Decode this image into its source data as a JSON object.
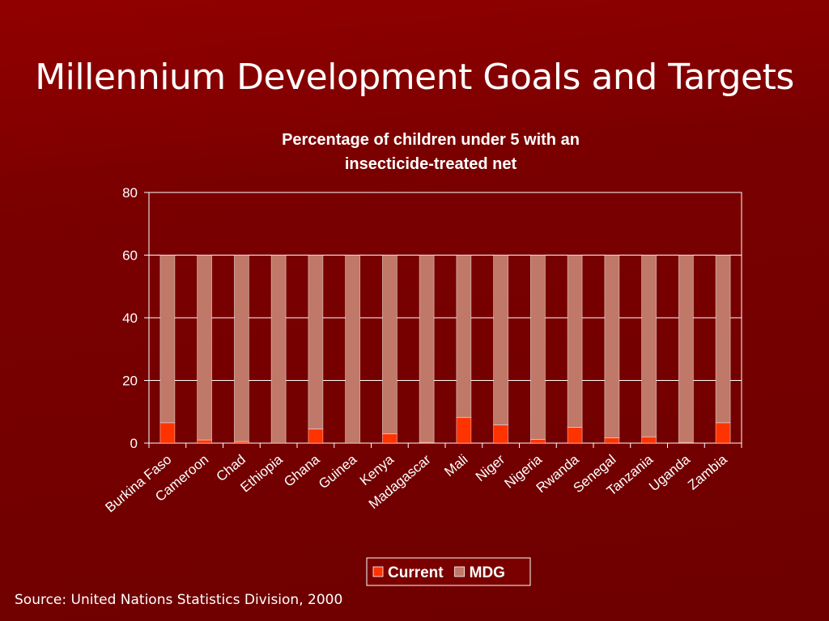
{
  "slide": {
    "title": "Millennium Development Goals and Targets",
    "source": "Source: United Nations Statistics Division, 2000"
  },
  "chart_data": {
    "type": "bar",
    "stacked": true,
    "title_lines": [
      "Percentage of children under 5 with an",
      "insecticide-treated net"
    ],
    "xlabel": "",
    "ylabel": "",
    "ylim": [
      0,
      80
    ],
    "yticks": [
      0,
      20,
      40,
      60,
      80
    ],
    "grid": true,
    "legend_position": "bottom",
    "categories": [
      "Burkina Faso",
      "Cameroon",
      "Chad",
      "Ethiopia",
      "Ghana",
      "Guinea",
      "Kenya",
      "Madagascar",
      "Mali",
      "Niger",
      "Nigeria",
      "Rwanda",
      "Senegal",
      "Tanzania",
      "Uganda",
      "Zambia"
    ],
    "series": [
      {
        "name": "Current",
        "color": "#ff3300",
        "values": [
          6.5,
          1,
          0.5,
          0,
          4.5,
          0,
          3,
          0.2,
          8.2,
          5.8,
          1.2,
          5,
          1.7,
          2,
          0.2,
          6.5
        ]
      },
      {
        "name": "MDG",
        "color": "#c07868",
        "values": [
          53.5,
          59,
          59.5,
          60,
          55.5,
          60,
          57,
          59.8,
          51.8,
          54.2,
          58.8,
          55,
          58.3,
          58,
          59.8,
          53.5
        ]
      }
    ],
    "colors": {
      "plot_border": "#ffffff",
      "grid": "#ffffff",
      "legend_bg": "#7a0000"
    }
  }
}
